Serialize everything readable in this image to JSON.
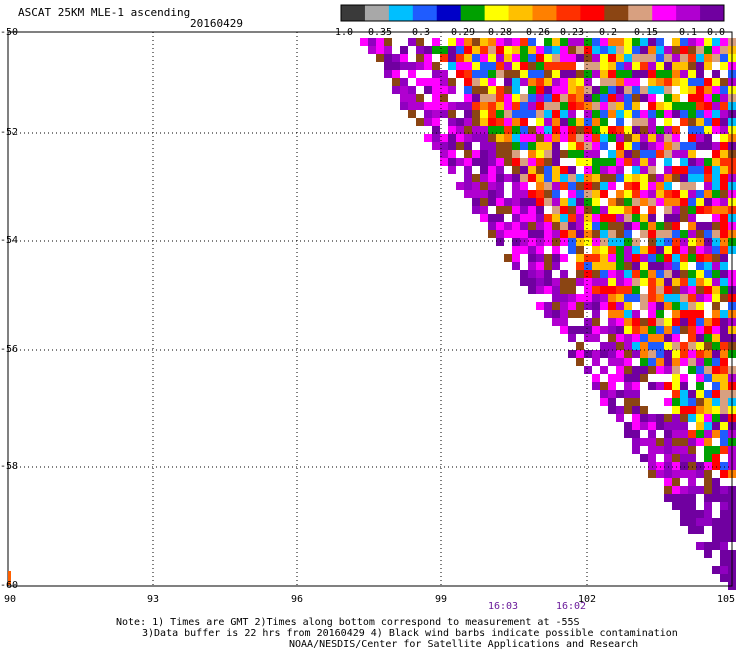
{
  "header": {
    "title": "ASCAT 25KM MLE-1 ascending",
    "date": "20160429"
  },
  "colorbar": {
    "colors": [
      "#3a3a3a",
      "#a8a8a8",
      "#00bfff",
      "#1f5cff",
      "#0000c8",
      "#00a000",
      "#ffff00",
      "#ffc000",
      "#ff8000",
      "#ff3000",
      "#ff0000",
      "#8b4513",
      "#d8a080",
      "#ff00ff",
      "#b000d0",
      "#7000a0"
    ],
    "tick_labels": [
      "-1.0",
      "-0.35",
      "-0.3",
      "-0.29",
      "-0.28",
      "-0.26",
      "-0.23",
      "-0.2",
      "-0.15",
      "-0.1",
      "0.0"
    ]
  },
  "axes": {
    "lat_labels": [
      "-50",
      "-52",
      "-54",
      "-56",
      "-58",
      "-60"
    ],
    "lon_labels": [
      "90",
      "93",
      "96",
      "99",
      "102",
      "105"
    ]
  },
  "times": [
    "16:03",
    "16:02"
  ],
  "notes": [
    "Note: 1) Times are GMT 2)Times along bottom correspond to measurement at -55S",
    "3)Data buffer is 22 hrs from 20160429 4) Black wind barbs indicate possible contamination",
    "NOAA/NESDIS/Center for Satellite Applications and Research"
  ]
}
